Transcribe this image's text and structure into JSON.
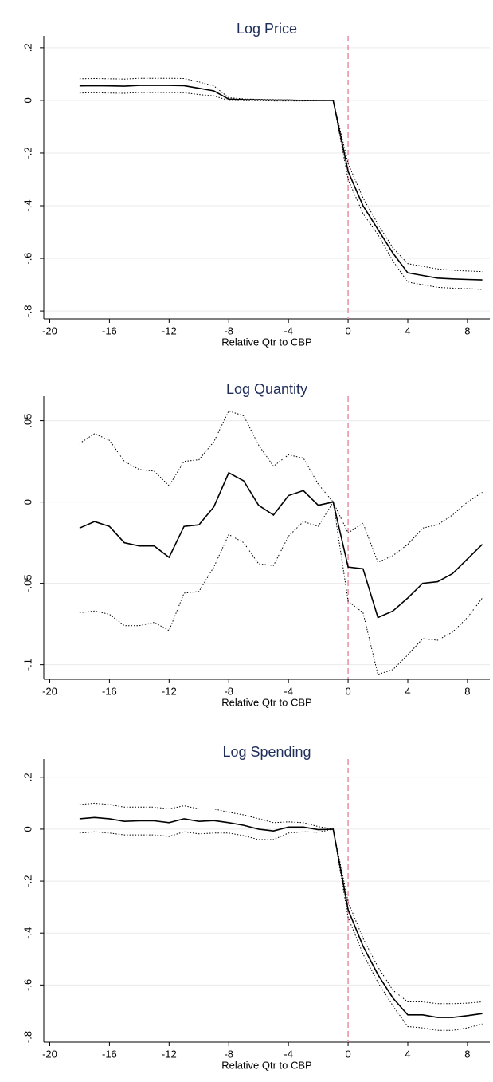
{
  "chart_data": [
    {
      "type": "line",
      "title": "Log Price",
      "xlabel": "Relative Qtr to CBP",
      "x": [
        -18,
        -17,
        -16,
        -15,
        -14,
        -13,
        -12,
        -11,
        -10,
        -9,
        -8,
        -7,
        -6,
        -5,
        -4,
        -3,
        -2,
        -1,
        0,
        1,
        2,
        3,
        4,
        5,
        6,
        7,
        8,
        9
      ],
      "xlim": [
        -20.4,
        9.5
      ],
      "xticks": [
        -20,
        -16,
        -12,
        -8,
        -4,
        0,
        4,
        8
      ],
      "ylim": [
        -0.83,
        0.245
      ],
      "yticks": [
        {
          "value": -0.8,
          "label": "-.8"
        },
        {
          "value": -0.6,
          "label": "-.6"
        },
        {
          "value": -0.4,
          "label": "-.4"
        },
        {
          "value": -0.2,
          "label": "-.2"
        },
        0,
        {
          "value": 0.2,
          "label": ".2"
        }
      ],
      "grid": true,
      "vline": {
        "x": 0,
        "color": "#e88fa3"
      },
      "series": [
        {
          "color": "#000000",
          "style": "solid",
          "values": [
            0.055,
            0.056,
            0.055,
            0.054,
            0.057,
            0.057,
            0.057,
            0.056,
            0.046,
            0.036,
            0.005,
            0.003,
            0.002,
            0.001,
            0.001,
            0,
            0,
            0,
            -0.27,
            -0.4,
            -0.49,
            -0.58,
            -0.655,
            -0.665,
            -0.675,
            -0.678,
            -0.68,
            -0.682
          ]
        },
        {
          "color": "#000000",
          "style": "dotted",
          "values": [
            0.082,
            0.083,
            0.082,
            0.081,
            0.084,
            0.084,
            0.084,
            0.083,
            0.07,
            0.055,
            0.01,
            0.006,
            0.004,
            0.003,
            0.002,
            0.001,
            0.001,
            0,
            -0.24,
            -0.37,
            -0.47,
            -0.56,
            -0.62,
            -0.63,
            -0.64,
            -0.645,
            -0.648,
            -0.65
          ]
        },
        {
          "color": "#000000",
          "style": "dotted",
          "values": [
            0.028,
            0.029,
            0.028,
            0.027,
            0.03,
            0.03,
            0.03,
            0.029,
            0.022,
            0.017,
            0,
            -0.001,
            -0.001,
            -0.002,
            -0.002,
            -0.002,
            -0.001,
            0,
            -0.3,
            -0.43,
            -0.51,
            -0.61,
            -0.69,
            -0.7,
            -0.71,
            -0.713,
            -0.715,
            -0.718
          ]
        }
      ]
    },
    {
      "type": "line",
      "title": "Log Quantity",
      "xlabel": "Relative Qtr to CBP",
      "x": [
        -18,
        -17,
        -16,
        -15,
        -14,
        -13,
        -12,
        -11,
        -10,
        -9,
        -8,
        -7,
        -6,
        -5,
        -4,
        -3,
        -2,
        -1,
        0,
        1,
        2,
        3,
        4,
        5,
        6,
        7,
        8,
        9
      ],
      "xlim": [
        -20.4,
        9.5
      ],
      "xticks": [
        -20,
        -16,
        -12,
        -8,
        -4,
        0,
        4,
        8
      ],
      "ylim": [
        -0.109,
        0.065
      ],
      "yticks": [
        {
          "value": -0.1,
          "label": "-.1"
        },
        {
          "value": -0.05,
          "label": "-.05"
        },
        0,
        {
          "value": 0.05,
          "label": ".05"
        }
      ],
      "grid": true,
      "vline": {
        "x": 0,
        "color": "#e88fa3"
      },
      "series": [
        {
          "color": "#000000",
          "style": "solid",
          "values": [
            -0.016,
            -0.012,
            -0.015,
            -0.025,
            -0.027,
            -0.027,
            -0.034,
            -0.015,
            -0.014,
            -0.003,
            0.018,
            0.013,
            -0.002,
            -0.008,
            0.004,
            0.007,
            -0.002,
            0,
            -0.04,
            -0.041,
            -0.071,
            -0.067,
            -0.059,
            -0.05,
            -0.049,
            -0.044,
            -0.035,
            -0.026
          ]
        },
        {
          "color": "#000000",
          "style": "dotted",
          "values": [
            0.036,
            0.042,
            0.038,
            0.025,
            0.02,
            0.019,
            0.01,
            0.025,
            0.026,
            0.037,
            0.056,
            0.053,
            0.035,
            0.022,
            0.029,
            0.027,
            0.011,
            0,
            -0.019,
            -0.013,
            -0.037,
            -0.033,
            -0.026,
            -0.016,
            -0.014,
            -0.008,
            0,
            0.006
          ]
        },
        {
          "color": "#000000",
          "style": "dotted",
          "values": [
            -0.068,
            -0.067,
            -0.069,
            -0.076,
            -0.076,
            -0.074,
            -0.079,
            -0.056,
            -0.055,
            -0.04,
            -0.02,
            -0.025,
            -0.038,
            -0.039,
            -0.021,
            -0.012,
            -0.015,
            0,
            -0.061,
            -0.068,
            -0.106,
            -0.103,
            -0.094,
            -0.084,
            -0.085,
            -0.08,
            -0.071,
            -0.059
          ]
        }
      ]
    },
    {
      "type": "line",
      "title": "Log Spending",
      "xlabel": "Relative Qtr to CBP",
      "x": [
        -18,
        -17,
        -16,
        -15,
        -14,
        -13,
        -12,
        -11,
        -10,
        -9,
        -8,
        -7,
        -6,
        -5,
        -4,
        -3,
        -2,
        -1,
        0,
        1,
        2,
        3,
        4,
        5,
        6,
        7,
        8,
        9
      ],
      "xlim": [
        -20.4,
        9.5
      ],
      "xticks": [
        -20,
        -16,
        -12,
        -8,
        -4,
        0,
        4,
        8
      ],
      "ylim": [
        -0.82,
        0.27
      ],
      "yticks": [
        {
          "value": -0.8,
          "label": "-.8"
        },
        {
          "value": -0.6,
          "label": "-.6"
        },
        {
          "value": -0.4,
          "label": "-.4"
        },
        {
          "value": -0.2,
          "label": "-.2"
        },
        0,
        {
          "value": 0.2,
          "label": ".2"
        }
      ],
      "grid": true,
      "vline": {
        "x": 0,
        "color": "#e88fa3"
      },
      "series": [
        {
          "color": "#000000",
          "style": "solid",
          "values": [
            0.04,
            0.045,
            0.04,
            0.03,
            0.032,
            0.032,
            0.025,
            0.04,
            0.03,
            0.033,
            0.025,
            0.015,
            0,
            -0.007,
            0.008,
            0.008,
            -0.002,
            0,
            -0.31,
            -0.45,
            -0.56,
            -0.65,
            -0.715,
            -0.715,
            -0.725,
            -0.725,
            -0.718,
            -0.71
          ]
        },
        {
          "color": "#000000",
          "style": "dotted",
          "values": [
            0.095,
            0.1,
            0.095,
            0.085,
            0.085,
            0.085,
            0.078,
            0.09,
            0.078,
            0.078,
            0.065,
            0.055,
            0.04,
            0.025,
            0.028,
            0.025,
            0.01,
            0,
            -0.28,
            -0.42,
            -0.53,
            -0.62,
            -0.665,
            -0.665,
            -0.672,
            -0.672,
            -0.67,
            -0.665
          ]
        },
        {
          "color": "#000000",
          "style": "dotted",
          "values": [
            -0.015,
            -0.01,
            -0.015,
            -0.022,
            -0.022,
            -0.022,
            -0.028,
            -0.01,
            -0.018,
            -0.015,
            -0.015,
            -0.025,
            -0.04,
            -0.04,
            -0.015,
            -0.01,
            -0.012,
            0,
            -0.34,
            -0.48,
            -0.59,
            -0.68,
            -0.76,
            -0.765,
            -0.775,
            -0.775,
            -0.765,
            -0.75
          ]
        }
      ]
    }
  ]
}
